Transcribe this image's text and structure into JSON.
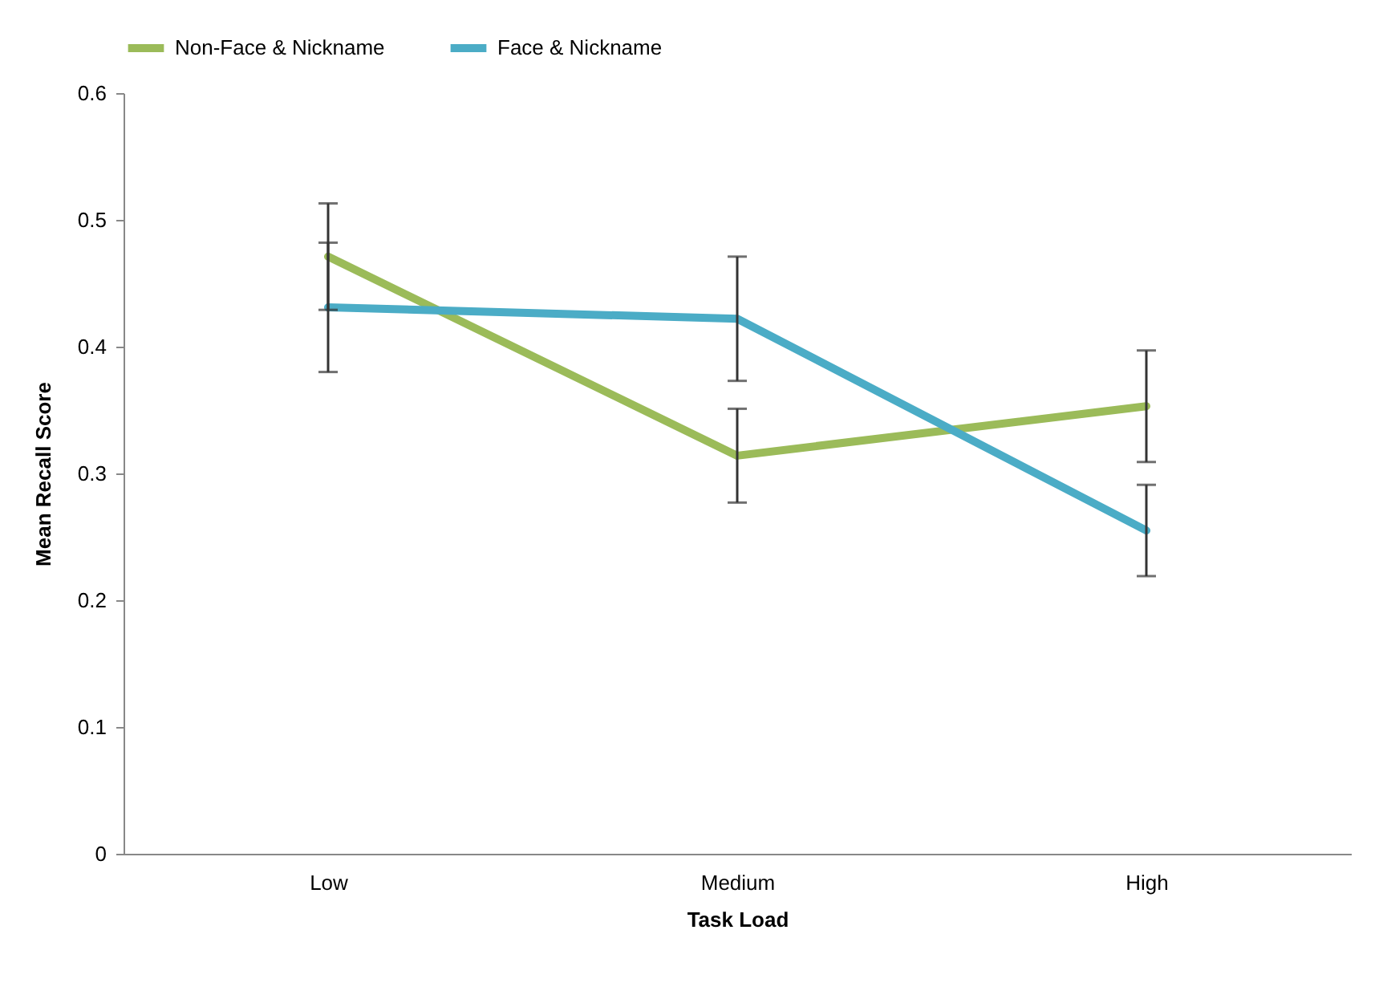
{
  "chart_data": {
    "type": "line",
    "xlabel": "Task Load",
    "ylabel": "Mean Recall Score",
    "categories": [
      "Low",
      "Medium",
      "High"
    ],
    "series": [
      {
        "name": "Non-Face & Nickname",
        "color": "#9bbb59",
        "values": [
          0.471,
          0.314,
          0.353
        ],
        "errors": [
          0.042,
          0.037,
          0.044
        ]
      },
      {
        "name": "Face & Nickname",
        "color": "#4bacc6",
        "values": [
          0.431,
          0.422,
          0.255
        ],
        "errors": [
          0.051,
          0.049,
          0.036
        ]
      }
    ],
    "ylim": [
      0,
      0.6
    ],
    "yticks": [
      0,
      0.1,
      0.2,
      0.3,
      0.4,
      0.5,
      0.6
    ],
    "grid": false,
    "legend": "top",
    "marker": "none",
    "line_style": "solid"
  }
}
